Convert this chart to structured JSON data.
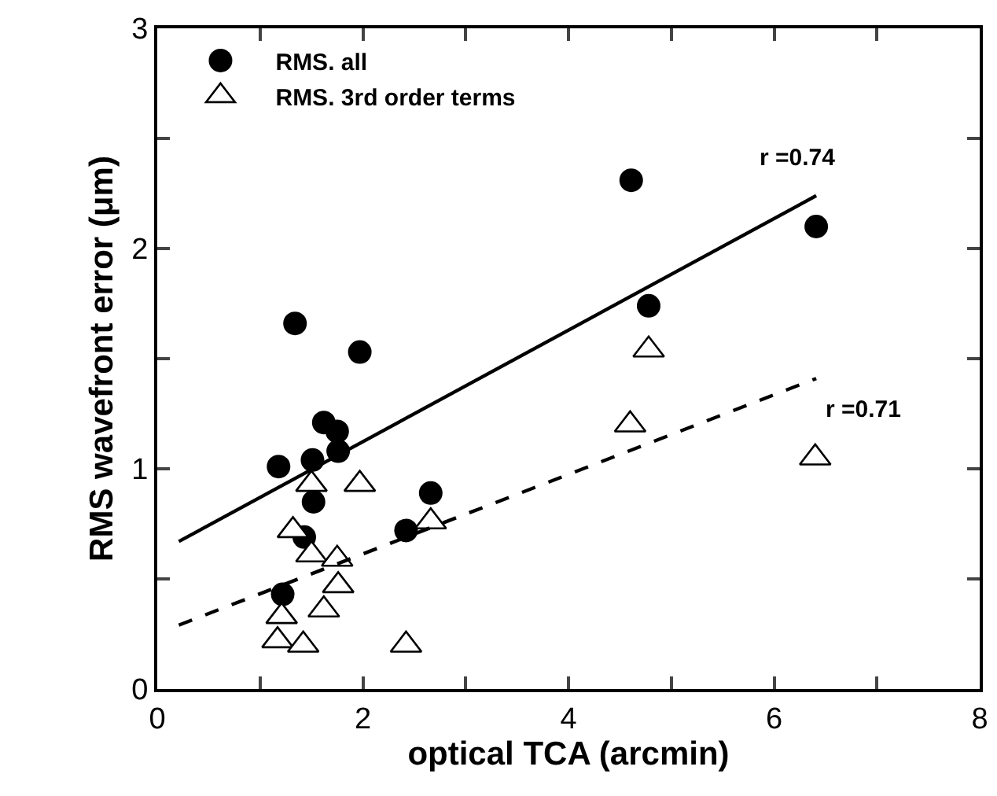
{
  "chart_data": {
    "type": "scatter",
    "xlabel": "optical TCA (arcmin)",
    "ylabel": "RMS wavefront error (μm)",
    "xlim": [
      0,
      8
    ],
    "ylim": [
      0,
      3
    ],
    "xticks": [
      0,
      {
        "value": 1,
        "label": null
      },
      2,
      {
        "value": 3,
        "label": null
      },
      4,
      {
        "value": 5,
        "label": null
      },
      6,
      {
        "value": 7,
        "label": null
      },
      8
    ],
    "yticks": [
      0,
      {
        "value": 0.5,
        "label": null
      },
      1,
      {
        "value": 1.5,
        "label": null
      },
      2,
      {
        "value": 2.5,
        "label": null
      },
      3
    ],
    "legend": "top left",
    "series": [
      {
        "name": "RMS. all",
        "marker": "circle",
        "color": "#000000",
        "x": [
          1.34,
          1.97,
          4.61,
          6.41,
          4.78,
          1.62,
          1.75,
          1.76,
          1.18,
          1.51,
          2.66,
          1.52,
          2.42,
          1.43,
          1.22
        ],
        "values": [
          1.66,
          1.53,
          2.31,
          2.1,
          1.74,
          1.21,
          1.17,
          1.08,
          1.01,
          1.04,
          0.89,
          0.85,
          0.72,
          0.69,
          0.43
        ]
      },
      {
        "name": "RMS. 3rd order terms",
        "marker": "triangle",
        "color": "#ffffff",
        "x": [
          4.78,
          4.6,
          6.4,
          1.97,
          1.5,
          2.66,
          1.32,
          1.5,
          1.75,
          1.76,
          1.62,
          1.21,
          1.17,
          1.42,
          2.42
        ],
        "values": [
          1.54,
          1.2,
          1.05,
          0.93,
          0.93,
          0.76,
          0.72,
          0.61,
          0.59,
          0.47,
          0.36,
          0.33,
          0.22,
          0.2,
          0.2
        ]
      },
      {
        "type": "line",
        "line_style": "solid",
        "color": "#000000",
        "x": [
          0.21,
          6.41
        ],
        "values": [
          0.67,
          2.24
        ]
      },
      {
        "type": "line",
        "line_style": "dashed",
        "color": "#000000",
        "x": [
          0.21,
          6.41
        ],
        "values": [
          0.29,
          1.41
        ]
      }
    ],
    "annotations": [
      "r =0.74",
      "r =0.71"
    ]
  }
}
